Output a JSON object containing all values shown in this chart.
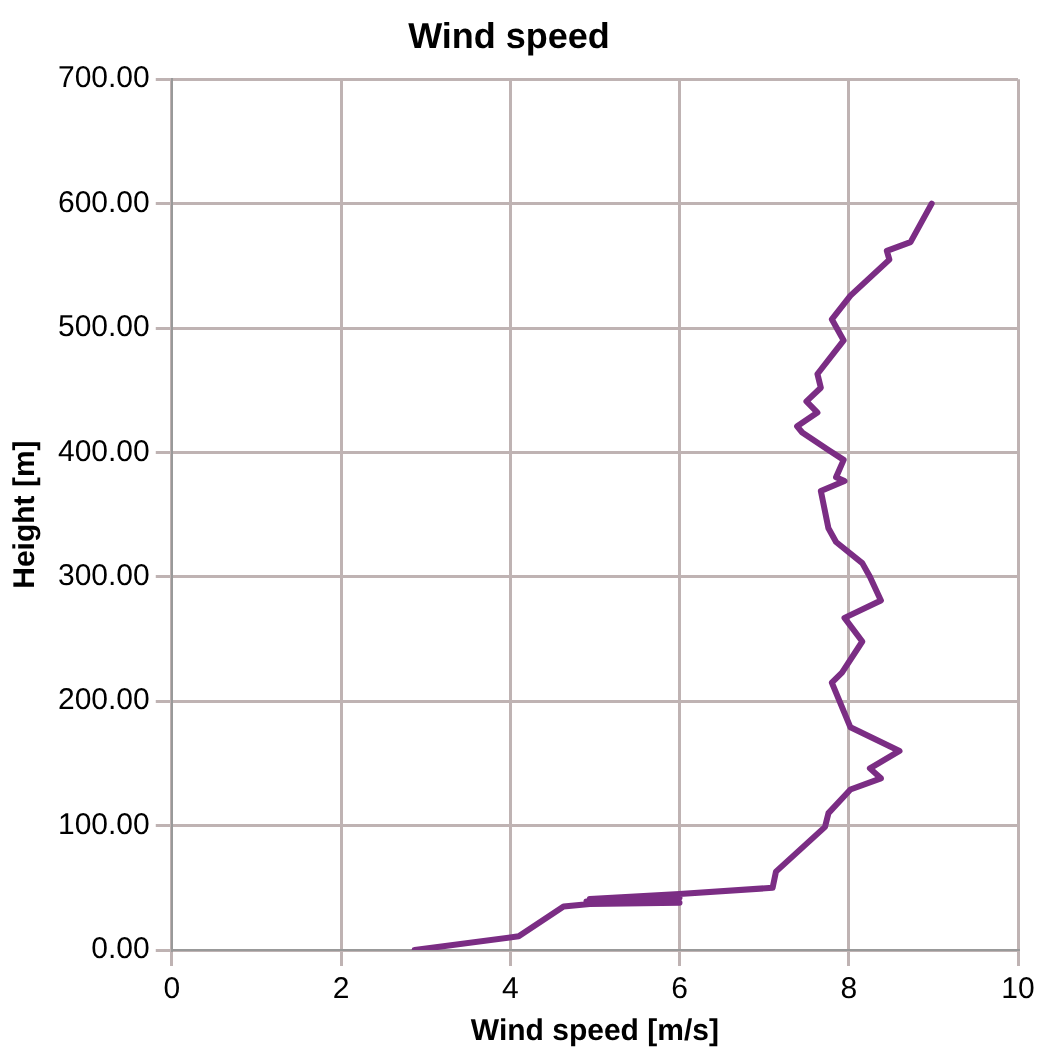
{
  "chart_data": {
    "type": "line",
    "title": "Wind speed",
    "xlabel": "Wind speed [m/s]",
    "ylabel": "Height [m]",
    "xlim": [
      0,
      10
    ],
    "xticks": [
      0,
      2,
      4,
      6,
      8,
      10
    ],
    "ylim": [
      0,
      700
    ],
    "yticks": [
      {
        "value": 0,
        "label": "0.00"
      },
      {
        "value": 100,
        "label": "100.00"
      },
      {
        "value": 200,
        "label": "200.00"
      },
      {
        "value": 300,
        "label": "300.00"
      },
      {
        "value": 400,
        "label": "400.00"
      },
      {
        "value": 500,
        "label": "500.00"
      },
      {
        "value": 600,
        "label": "600.00"
      },
      {
        "value": 700,
        "label": "700.00"
      }
    ],
    "grid": true,
    "legend": false,
    "marker": "none",
    "line_style": "solid",
    "series": [
      {
        "color": "#7b2d84",
        "x": [
          2.87,
          4.1,
          4.63,
          4.94,
          6.0,
          4.9,
          6.0,
          4.94,
          6.0,
          7.1,
          7.14,
          7.72,
          7.76,
          8.02,
          8.38,
          8.25,
          8.6,
          8.02,
          7.8,
          7.92,
          8.16,
          7.95,
          8.38,
          8.25,
          8.16,
          7.85,
          7.76,
          7.67,
          7.95,
          7.85,
          7.94,
          7.76,
          7.45,
          7.39,
          7.63,
          7.5,
          7.67,
          7.63,
          7.94,
          7.8,
          8.02,
          8.48,
          8.45,
          8.73,
          8.98
        ],
        "values": [
          0,
          11,
          35,
          37,
          38,
          39,
          42,
          41,
          45,
          50,
          63,
          99,
          110,
          129,
          138,
          146,
          160,
          179,
          215,
          223,
          248,
          267,
          281,
          300,
          311,
          328,
          339,
          369,
          377,
          380,
          394,
          402,
          416,
          421,
          432,
          441,
          452,
          463,
          490,
          507,
          526,
          555,
          562,
          569,
          600
        ]
      }
    ]
  }
}
